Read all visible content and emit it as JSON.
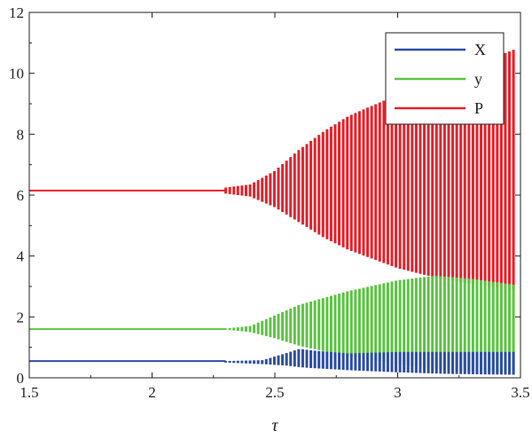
{
  "chart_data": {
    "type": "line",
    "title": "",
    "xlabel": "τ",
    "ylabel": "",
    "xlim": [
      1.5,
      3.5
    ],
    "ylim": [
      0,
      12
    ],
    "xticks": [
      "1.5",
      "2",
      "2.5",
      "3",
      "3.5"
    ],
    "yticks": [
      "0",
      "2",
      "4",
      "6",
      "8",
      "10",
      "12"
    ],
    "grid": false,
    "legend_position": "top-right",
    "bifurcation": {
      "onset": 2.3,
      "xmax": 3.48,
      "bar_spacing": 0.0165,
      "equilibrium": {
        "X": 0.55,
        "y": 1.6,
        "P": 6.15
      }
    },
    "series": [
      {
        "name": "X",
        "color": "#2e4ea3",
        "envelope": {
          "x": [
            2.3,
            2.45,
            2.55,
            2.6,
            2.65,
            2.8,
            3.0,
            3.2,
            3.48
          ],
          "upper": [
            0.55,
            0.58,
            0.82,
            0.95,
            0.9,
            0.8,
            0.85,
            0.85,
            0.85
          ],
          "lower": [
            0.5,
            0.45,
            0.4,
            0.35,
            0.32,
            0.25,
            0.18,
            0.13,
            0.1
          ]
        }
      },
      {
        "name": "y",
        "color": "#5cc443",
        "envelope": {
          "x": [
            2.3,
            2.4,
            2.5,
            2.6,
            2.8,
            3.0,
            3.15,
            3.3,
            3.48
          ],
          "upper": [
            1.62,
            1.7,
            2.05,
            2.4,
            2.85,
            3.2,
            3.35,
            3.25,
            3.05
          ],
          "lower": [
            1.58,
            1.5,
            1.3,
            1.05,
            0.7,
            0.45,
            0.3,
            0.2,
            0.15
          ]
        }
      },
      {
        "name": "P",
        "color": "#e8202a",
        "envelope": {
          "x": [
            2.3,
            2.4,
            2.5,
            2.6,
            2.7,
            2.8,
            3.0,
            3.2,
            3.48
          ],
          "upper": [
            6.25,
            6.35,
            6.8,
            7.5,
            8.1,
            8.6,
            9.3,
            9.9,
            10.8
          ],
          "lower": [
            6.05,
            5.95,
            5.6,
            5.1,
            4.6,
            4.2,
            3.6,
            3.2,
            2.9
          ]
        }
      }
    ]
  }
}
